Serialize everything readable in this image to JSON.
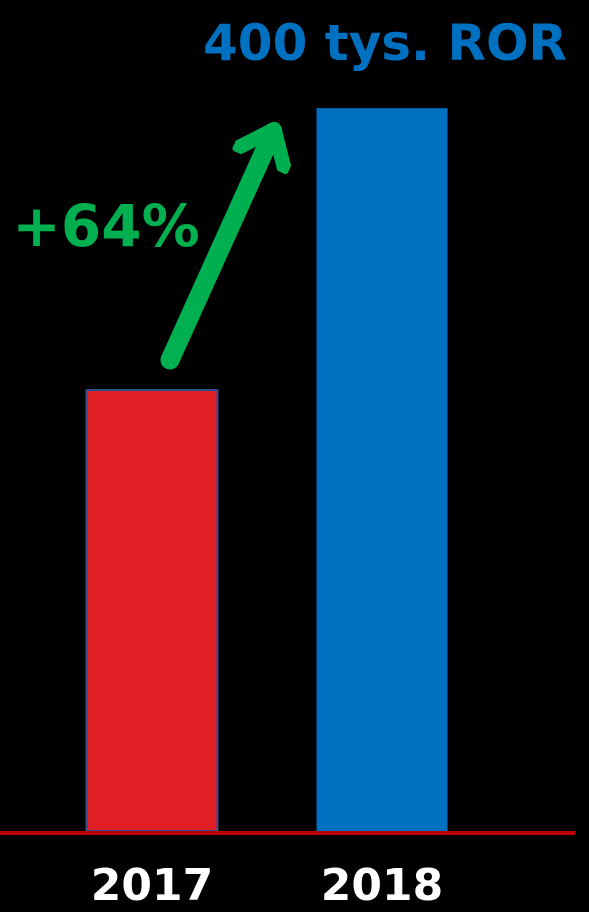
{
  "chart_data": {
    "type": "bar",
    "categories": [
      "2017",
      "2018"
    ],
    "values": [
      244,
      400
    ],
    "value_unit": "tys. ROR",
    "colors": [
      "#E01E24",
      "#0070C0"
    ],
    "ylim": [
      0,
      420
    ],
    "grid": false,
    "axis_color": "#C00000",
    "background": "#000000",
    "annotations": {
      "top_value_label": "400 tys. ROR",
      "top_value_color": "#0070C0",
      "growth_label": "+64%",
      "growth_color": "#00B050",
      "arrow_icon": "up-right-arrow"
    }
  }
}
